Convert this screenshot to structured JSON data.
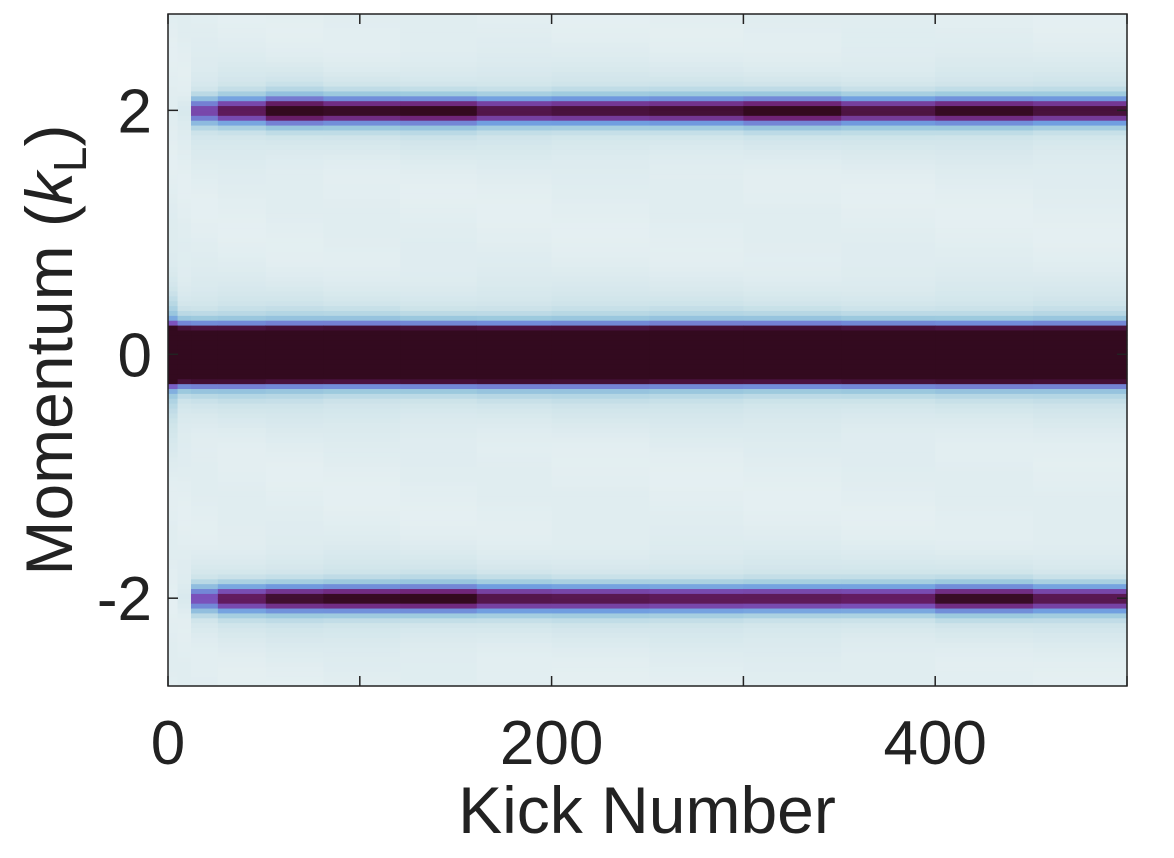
{
  "chart_data": {
    "type": "heatmap",
    "xlabel": "Kick Number",
    "ylabel_main": "Momentum (",
    "ylabel_k": "k",
    "ylabel_sub": "L",
    "ylabel_close": ")",
    "xlim": [
      0,
      500
    ],
    "ylim": [
      -2.72,
      2.79
    ],
    "xticks": [
      0,
      100,
      200,
      300,
      400,
      500
    ],
    "xtick_labels": [
      "0",
      "",
      "200",
      "",
      "400",
      ""
    ],
    "yticks": [
      -2,
      0,
      2
    ],
    "ytick_labels": [
      "-2",
      "0",
      "2"
    ],
    "grid": false,
    "colormap": [
      "#e8f1f3",
      "#cfe4ea",
      "#9cc9de",
      "#6f9de0",
      "#7b55c0",
      "#6e2070",
      "#330a1f"
    ],
    "column_edges": [
      0,
      5,
      12,
      26,
      51,
      81,
      121,
      161,
      200,
      251,
      300,
      351,
      400,
      451,
      500
    ],
    "band_momenta": [
      -2,
      0,
      2
    ],
    "center_band_intensity": [
      1,
      1,
      1,
      1,
      1,
      1,
      1,
      1,
      1,
      1,
      1,
      1,
      1,
      1
    ],
    "plus2_band_intensity": [
      0.0,
      0.05,
      0.6,
      0.75,
      0.9,
      0.82,
      0.85,
      0.78,
      0.8,
      0.8,
      0.85,
      0.78,
      0.85,
      0.8
    ],
    "minus2_band_intensity": [
      0.0,
      0.05,
      0.55,
      0.72,
      0.82,
      0.85,
      0.85,
      0.75,
      0.75,
      0.75,
      0.75,
      0.72,
      0.82,
      0.75
    ]
  }
}
